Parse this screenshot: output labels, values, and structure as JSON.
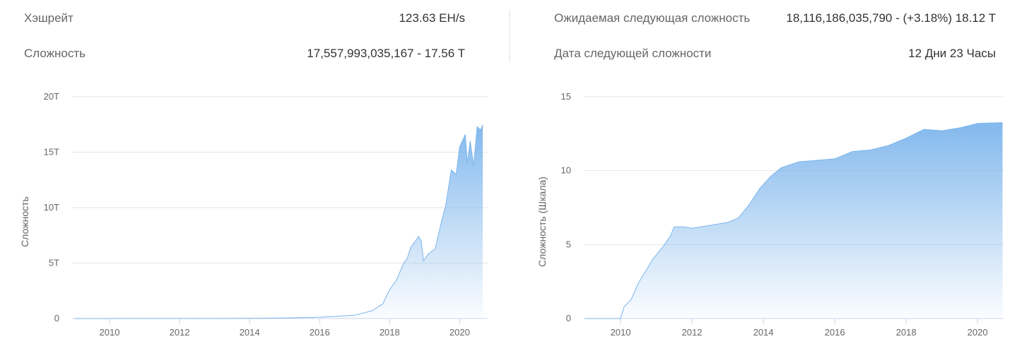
{
  "stats": [
    {
      "label": "Хэшрейт",
      "value": "123.63 EH/s"
    },
    {
      "label": "Сложность",
      "value": "17,557,993,035,167 - 17.56 T"
    },
    {
      "label": "Ожидаемая следующая сложность",
      "value": "18,116,186,035,790 - (+3.18%) 18.12 T"
    },
    {
      "label": "Дата следующей сложности",
      "value": "12 Дни 23 Часы"
    }
  ],
  "chart_data": [
    {
      "type": "area",
      "y_label": "Сложность",
      "color": "#7cb5ec",
      "grid": true,
      "x": [
        2009.0,
        2014.0,
        2015.0,
        2016.0,
        2016.5,
        2017.0,
        2017.5,
        2017.8,
        2018.0,
        2018.2,
        2018.4,
        2018.5,
        2018.6,
        2018.83,
        2018.9,
        2018.97,
        2019.1,
        2019.3,
        2019.5,
        2019.6,
        2019.76,
        2019.9,
        2020.0,
        2020.16,
        2020.22,
        2020.3,
        2020.4,
        2020.5,
        2020.6,
        2020.66
      ],
      "values": [
        0,
        0.01,
        0.05,
        0.12,
        0.2,
        0.3,
        0.7,
        1.3,
        2.6,
        3.5,
        5.0,
        5.4,
        6.4,
        7.4,
        7.0,
        5.2,
        5.8,
        6.3,
        9.0,
        10.2,
        13.4,
        13.0,
        15.5,
        16.6,
        14.0,
        16.0,
        13.8,
        17.3,
        17.0,
        17.5
      ],
      "xlim": [
        2008.93,
        2020.8
      ],
      "xticks": [
        2010,
        2012,
        2014,
        2016,
        2018,
        2020
      ],
      "ylim": [
        0,
        20
      ],
      "yticks": [
        0,
        {
          "value": 5,
          "label": "5T"
        },
        {
          "value": 10,
          "label": "10T"
        },
        {
          "value": 15,
          "label": "15T"
        },
        {
          "value": 20,
          "label": "20T"
        }
      ]
    },
    {
      "type": "area",
      "y_label": "Сложность (Шкала)",
      "color": "#7cb5ec",
      "grid": true,
      "x": [
        2009.0,
        2010.0,
        2010.1,
        2010.3,
        2010.5,
        2010.7,
        2010.9,
        2011.2,
        2011.4,
        2011.5,
        2011.8,
        2012.0,
        2012.5,
        2013.0,
        2013.3,
        2013.6,
        2013.9,
        2014.2,
        2014.5,
        2015.0,
        2015.5,
        2016.0,
        2016.5,
        2017.0,
        2017.5,
        2018.0,
        2018.5,
        2019.0,
        2019.5,
        2020.0,
        2020.7
      ],
      "values": [
        0,
        0,
        0.8,
        1.3,
        2.4,
        3.2,
        4.0,
        4.9,
        5.6,
        6.2,
        6.2,
        6.1,
        6.3,
        6.5,
        6.8,
        7.7,
        8.8,
        9.6,
        10.2,
        10.6,
        10.7,
        10.8,
        11.3,
        11.4,
        11.7,
        12.2,
        12.8,
        12.7,
        12.9,
        13.2,
        13.25
      ],
      "xlim": [
        2008.97,
        2020.73
      ],
      "xticks": [
        2010,
        2012,
        2014,
        2016,
        2018,
        2020
      ],
      "ylim": [
        0,
        15
      ],
      "yticks": [
        0,
        5,
        10,
        15
      ]
    }
  ]
}
